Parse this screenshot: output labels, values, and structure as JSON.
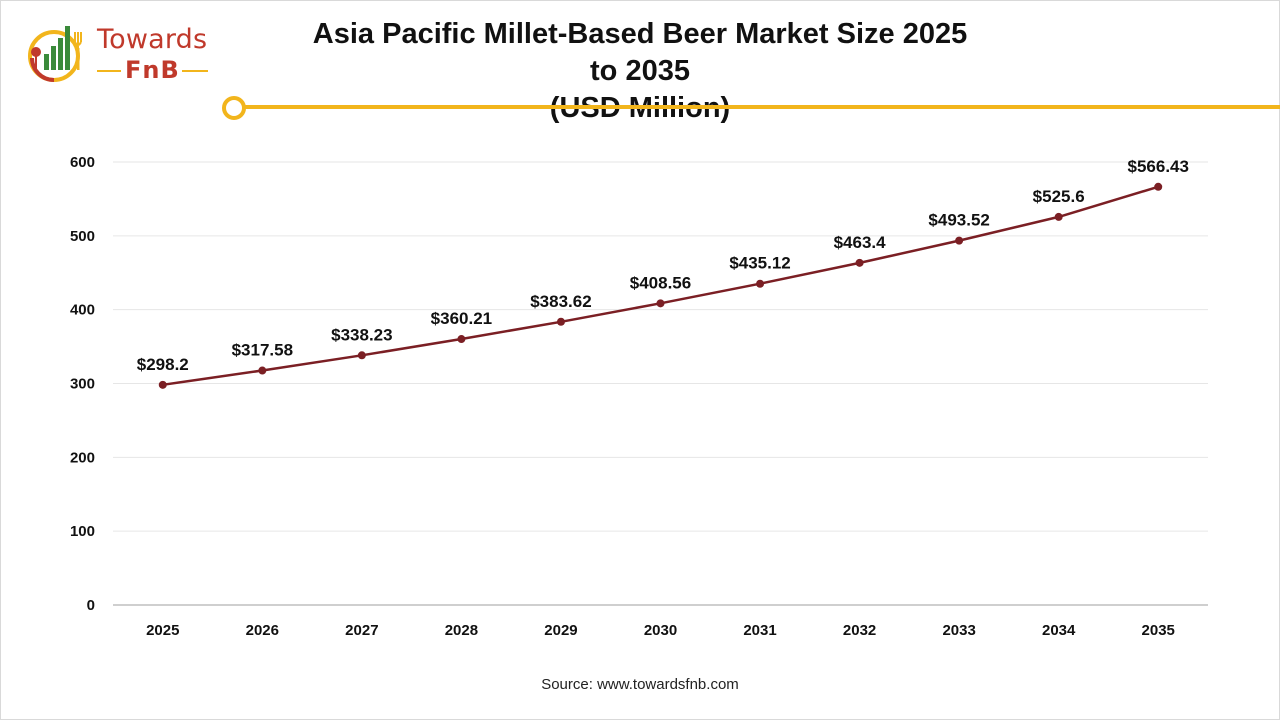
{
  "logo": {
    "line1": "Towards",
    "line2": "FnB"
  },
  "chart_data": {
    "type": "line",
    "title_lines": [
      "Asia Pacific Millet-Based Beer Market Size 2025 to 2035",
      "(USD Million)"
    ],
    "xlabel": "",
    "ylabel": "",
    "categories": [
      "2025",
      "2026",
      "2027",
      "2028",
      "2029",
      "2030",
      "2031",
      "2032",
      "2033",
      "2034",
      "2035"
    ],
    "values": [
      298.2,
      317.58,
      338.23,
      360.21,
      383.62,
      408.56,
      435.12,
      463.4,
      493.52,
      525.6,
      566.43
    ],
    "data_labels": [
      "$298.2",
      "$317.58",
      "$338.23",
      "$360.21",
      "$383.62",
      "$408.56",
      "$435.12",
      "$463.4",
      "$493.52",
      "$525.6",
      "$566.43"
    ],
    "y_ticks": [
      0,
      100,
      200,
      300,
      400,
      500,
      600
    ],
    "ylim": [
      0,
      600
    ],
    "grid": true,
    "legend": "none",
    "line_color": "#7b1f24"
  },
  "source": "Source: www.towardsfnb.com",
  "colors": {
    "accent": "#f2b51c",
    "brand": "#c0392b",
    "grid": "#e6e6e6"
  }
}
